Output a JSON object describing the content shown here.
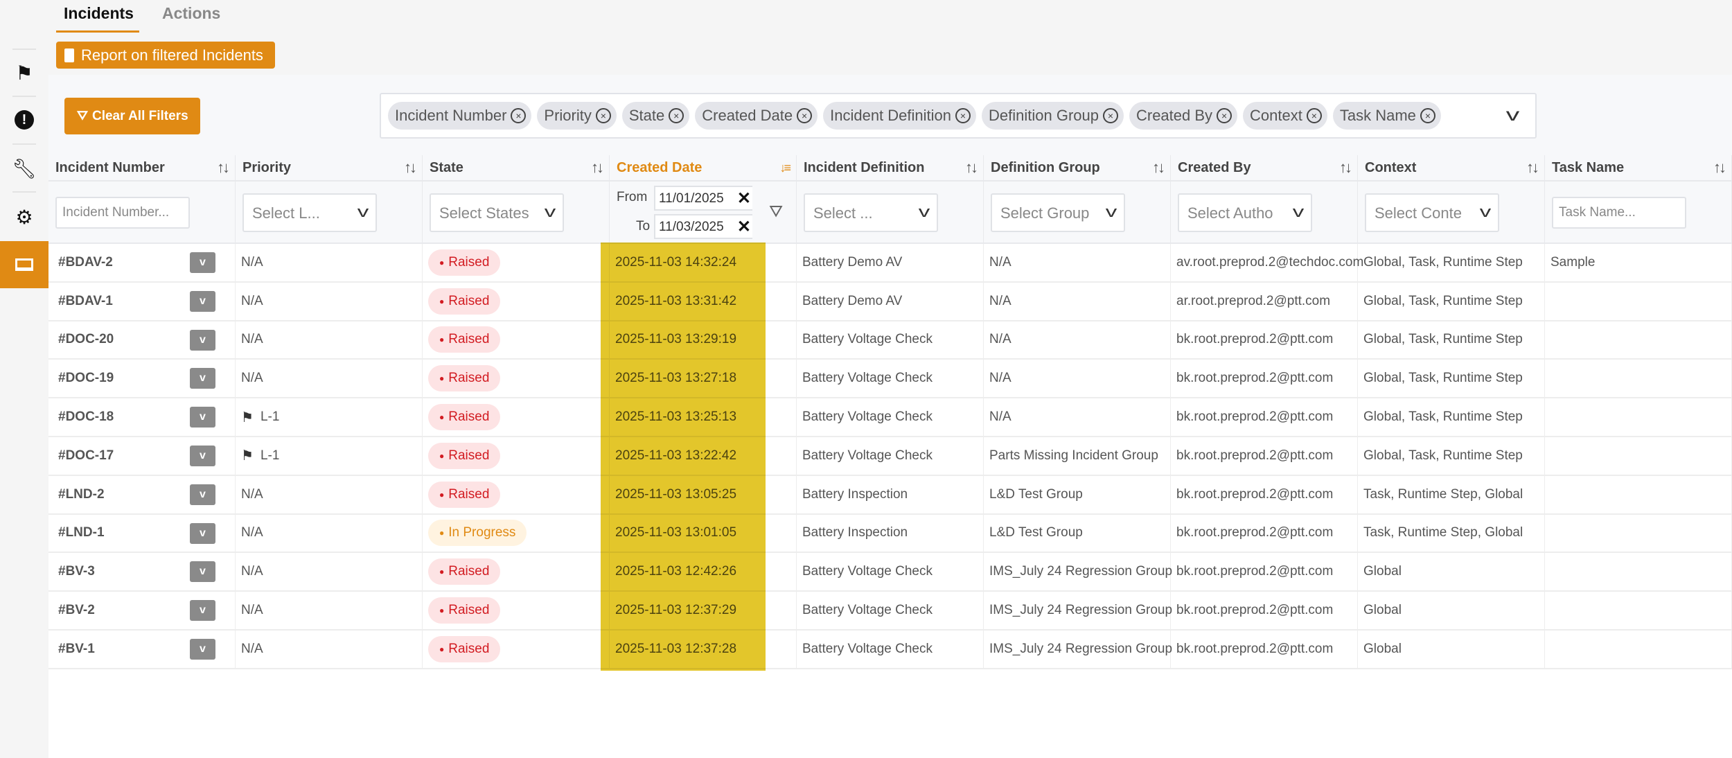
{
  "tabs": [
    {
      "label": "Incidents",
      "active": true
    },
    {
      "label": "Actions",
      "active": false
    }
  ],
  "sidebar": {
    "items": [
      {
        "icon": "flag-icon"
      },
      {
        "icon": "exclamation-icon"
      },
      {
        "icon": "wrench-icon"
      },
      {
        "icon": "gears-icon"
      },
      {
        "icon": "laptop-icon",
        "active": true
      }
    ]
  },
  "report_button": "Report on filtered Incidents",
  "clear_filters_button": "Clear All Filters",
  "column_chips": [
    "Incident Number",
    "Priority",
    "State",
    "Created Date",
    "Incident Definition",
    "Definition Group",
    "Created By",
    "Context",
    "Task Name"
  ],
  "columns": [
    "Incident Number",
    "Priority",
    "State",
    "Created Date",
    "Incident Definition",
    "Definition Group",
    "Created By",
    "Context",
    "Task Name"
  ],
  "filters": {
    "incident_number_placeholder": "Incident Number...",
    "priority": "Select L...",
    "state": "Select States",
    "date_from_label": "From",
    "date_from": "11/01/2025",
    "date_to_label": "To",
    "date_to": "11/03/2025",
    "definition": "Select ...",
    "group": "Select Group",
    "created_by": "Select Autho",
    "context": "Select Conte",
    "task_name_placeholder": "Task Name..."
  },
  "colors": {
    "accent": "#e08a14",
    "raised": "#d21c22",
    "highlight": "#e2c52a"
  },
  "rows": [
    {
      "id": "#BDAV-2",
      "priority": "N/A",
      "state": "Raised",
      "created": "2025-11-03 14:32:24",
      "definition": "Battery Demo AV",
      "group": "N/A",
      "created_by": "av.root.preprod.2@techdoc.com",
      "context": "Global, Task, Runtime Step",
      "task": "Sample"
    },
    {
      "id": "#BDAV-1",
      "priority": "N/A",
      "state": "Raised",
      "created": "2025-11-03 13:31:42",
      "definition": "Battery Demo AV",
      "group": "N/A",
      "created_by": "ar.root.preprod.2@ptt.com",
      "context": "Global, Task, Runtime Step",
      "task": ""
    },
    {
      "id": "#DOC-20",
      "priority": "N/A",
      "state": "Raised",
      "created": "2025-11-03 13:29:19",
      "definition": "Battery Voltage Check",
      "group": "N/A",
      "created_by": "bk.root.preprod.2@ptt.com",
      "context": "Global, Task, Runtime Step",
      "task": ""
    },
    {
      "id": "#DOC-19",
      "priority": "N/A",
      "state": "Raised",
      "created": "2025-11-03 13:27:18",
      "definition": "Battery Voltage Check",
      "group": "N/A",
      "created_by": "bk.root.preprod.2@ptt.com",
      "context": "Global, Task, Runtime Step",
      "task": ""
    },
    {
      "id": "#DOC-18",
      "priority": "L-1",
      "flag": true,
      "state": "Raised",
      "created": "2025-11-03 13:25:13",
      "definition": "Battery Voltage Check",
      "group": "N/A",
      "created_by": "bk.root.preprod.2@ptt.com",
      "context": "Global, Task, Runtime Step",
      "task": ""
    },
    {
      "id": "#DOC-17",
      "priority": "L-1",
      "flag": true,
      "state": "Raised",
      "created": "2025-11-03 13:22:42",
      "definition": "Battery Voltage Check",
      "group": "Parts Missing Incident Group",
      "created_by": "bk.root.preprod.2@ptt.com",
      "context": "Global, Task, Runtime Step",
      "task": ""
    },
    {
      "id": "#LND-2",
      "priority": "N/A",
      "state": "Raised",
      "created": "2025-11-03 13:05:25",
      "definition": "Battery Inspection",
      "group": "L&D Test Group",
      "created_by": "bk.root.preprod.2@ptt.com",
      "context": "Task, Runtime Step, Global",
      "task": ""
    },
    {
      "id": "#LND-1",
      "priority": "N/A",
      "state": "In Progress",
      "created": "2025-11-03 13:01:05",
      "definition": "Battery Inspection",
      "group": "L&D Test Group",
      "created_by": "bk.root.preprod.2@ptt.com",
      "context": "Task, Runtime Step, Global",
      "task": ""
    },
    {
      "id": "#BV-3",
      "priority": "N/A",
      "state": "Raised",
      "created": "2025-11-03 12:42:26",
      "definition": "Battery Voltage Check",
      "group": "IMS_July 24 Regression Group",
      "created_by": "bk.root.preprod.2@ptt.com",
      "context": "Global",
      "task": ""
    },
    {
      "id": "#BV-2",
      "priority": "N/A",
      "state": "Raised",
      "created": "2025-11-03 12:37:29",
      "definition": "Battery Voltage Check",
      "group": "IMS_July 24 Regression Group",
      "created_by": "bk.root.preprod.2@ptt.com",
      "context": "Global",
      "task": ""
    },
    {
      "id": "#BV-1",
      "priority": "N/A",
      "state": "Raised",
      "created": "2025-11-03 12:37:28",
      "definition": "Battery Voltage Check",
      "group": "IMS_July 24 Regression Group",
      "created_by": "bk.root.preprod.2@ptt.com",
      "context": "Global",
      "task": ""
    }
  ]
}
